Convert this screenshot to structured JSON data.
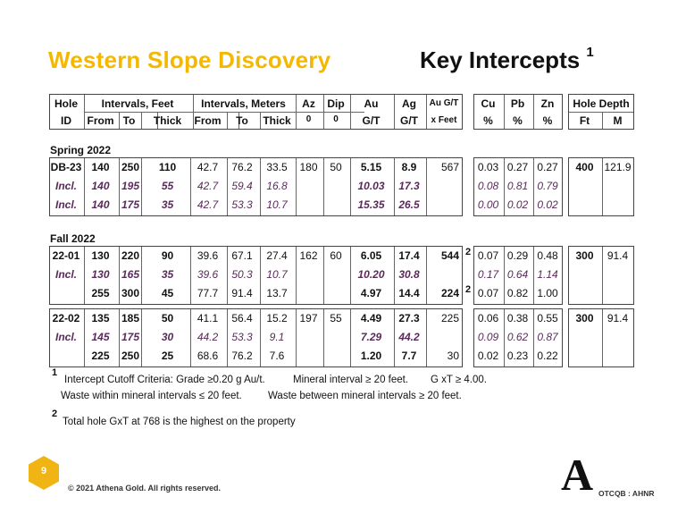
{
  "title": {
    "left": "Western Slope Discovery",
    "right": "Key Intercepts",
    "right_sup": "1"
  },
  "header": {
    "hole": "Hole",
    "id": "ID",
    "int_feet": "Intervals, Feet",
    "int_meters": "Intervals, Meters",
    "from": "From",
    "to": "To",
    "thick": "Thick",
    "az": "Az",
    "dip": "Dip",
    "deg": "0",
    "au": "Au",
    "ag": "Ag",
    "gt": "G/T",
    "augt": "Au G/T",
    "xfeet": "x Feet",
    "cu": "Cu",
    "pb": "Pb",
    "zn": "Zn",
    "pct": "%",
    "depth": "Hole Depth",
    "ft": "Ft",
    "m": "M"
  },
  "spring": {
    "label": "Spring 2022",
    "rows": [
      {
        "id": "DB-23",
        "f_from": "140",
        "f_to": "250",
        "f_thick": "110",
        "m_from": "42.7",
        "m_to": "76.2",
        "m_thick": "33.5",
        "az": "180",
        "dip": "50",
        "au": "5.15",
        "ag": "8.9",
        "gxt": "567",
        "cu": "0.03",
        "pb": "0.27",
        "zn": "0.27",
        "ft": "400",
        "m": "121.9"
      },
      {
        "id": "Incl.",
        "f_from": "140",
        "f_to": "195",
        "f_thick": "55",
        "m_from": "42.7",
        "m_to": "59.4",
        "m_thick": "16.8",
        "au": "10.03",
        "ag": "17.3",
        "cu": "0.08",
        "pb": "0.81",
        "zn": "0.79"
      },
      {
        "id": "Incl.",
        "f_from": "140",
        "f_to": "175",
        "f_thick": "35",
        "m_from": "42.7",
        "m_to": "53.3",
        "m_thick": "10.7",
        "au": "15.35",
        "ag": "26.5",
        "cu": "0.00",
        "pb": "0.02",
        "zn": "0.02"
      }
    ]
  },
  "fall": {
    "label": "Fall 2022",
    "hole1": [
      {
        "id": "22-01",
        "f_from": "130",
        "f_to": "220",
        "f_thick": "90",
        "m_from": "39.6",
        "m_to": "67.1",
        "m_thick": "27.4",
        "az": "162",
        "dip": "60",
        "au": "6.05",
        "ag": "17.4",
        "gxt": "544",
        "note": "2",
        "cu": "0.07",
        "pb": "0.29",
        "zn": "0.48",
        "ft": "300",
        "m": "91.4"
      },
      {
        "id": "Incl.",
        "f_from": "130",
        "f_to": "165",
        "f_thick": "35",
        "m_from": "39.6",
        "m_to": "50.3",
        "m_thick": "10.7",
        "au": "10.20",
        "ag": "30.8",
        "cu": "0.17",
        "pb": "0.64",
        "zn": "1.14"
      },
      {
        "id": "",
        "f_from": "255",
        "f_to": "300",
        "f_thick": "45",
        "m_from": "77.7",
        "m_to": "91.4",
        "m_thick": "13.7",
        "au": "4.97",
        "ag": "14.4",
        "gxt": "224",
        "note": "2",
        "cu": "0.07",
        "pb": "0.82",
        "zn": "1.00"
      }
    ],
    "hole2": [
      {
        "id": "22-02",
        "f_from": "135",
        "f_to": "185",
        "f_thick": "50",
        "m_from": "41.1",
        "m_to": "56.4",
        "m_thick": "15.2",
        "az": "197",
        "dip": "55",
        "au": "4.49",
        "ag": "27.3",
        "gxt": "225",
        "cu": "0.06",
        "pb": "0.38",
        "zn": "0.55",
        "ft": "300",
        "m": "91.4"
      },
      {
        "id": "Incl.",
        "f_from": "145",
        "f_to": "175",
        "f_thick": "30",
        "m_from": "44.2",
        "m_to": "53.3",
        "m_thick": "9.1",
        "au": "7.29",
        "ag": "44.2",
        "cu": "0.09",
        "pb": "0.62",
        "zn": "0.87"
      },
      {
        "id": "",
        "f_from": "225",
        "f_to": "250",
        "f_thick": "25",
        "m_from": "68.6",
        "m_to": "76.2",
        "m_thick": "7.6",
        "au": "1.20",
        "ag": "7.7",
        "gxt": "30",
        "cu": "0.02",
        "pb": "0.23",
        "zn": "0.22"
      }
    ]
  },
  "footnotes": {
    "n1_mark": "1",
    "n1_line1a": "Intercept Cutoff Criteria:  Grade ≥0.20 g Au/t.",
    "n1_line1b": "Mineral interval ≥ 20 feet.",
    "n1_line1c": "G xT ≥ 4.00.",
    "n1_line2a": "Waste within mineral intervals ≤ 20 feet.",
    "n1_line2b": "Waste between mineral intervals ≥ 20 feet.",
    "n2_mark": "2",
    "n2_text": "Total hole GxT at 768 is the highest on the property"
  },
  "footer": {
    "page": "9",
    "copyright": "© 2021 Athena Gold. All rights reserved.",
    "logo": "A",
    "ticker": "OTCQB : AHNR"
  },
  "colors": {
    "accent": "#F5B800",
    "italic_text": "#5a2a5a"
  }
}
